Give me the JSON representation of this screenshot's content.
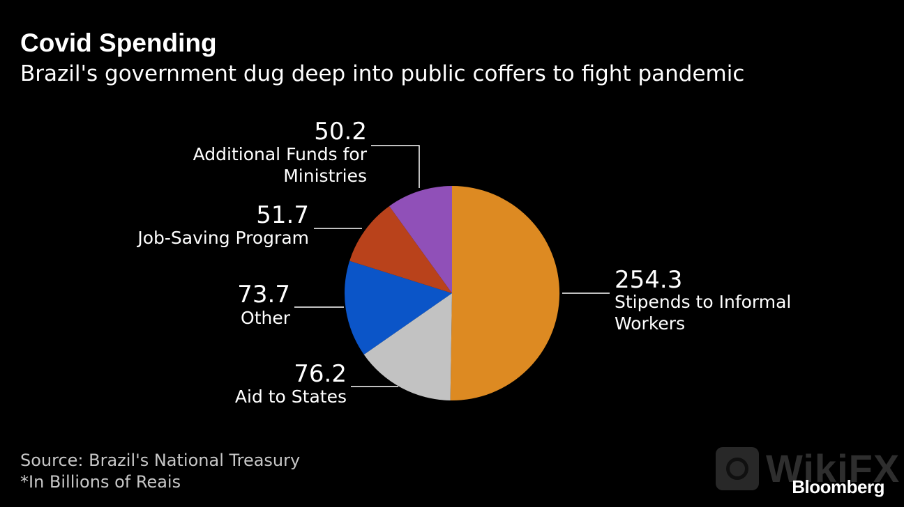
{
  "header": {
    "title": "Covid Spending",
    "subtitle": "Brazil's government dug deep into public coffers to fight pandemic"
  },
  "footer": {
    "source": "Source: Brazil's National Treasury",
    "note": "*In Billions of Reais",
    "brand": "Bloomberg"
  },
  "watermark": {
    "text": "WikiFX",
    "icon": "wikifx-logo-icon"
  },
  "chart_data": {
    "type": "pie",
    "unit": "Billions of Reais",
    "slices": [
      {
        "label": "Stipends to Informal Workers",
        "value": 254.3,
        "display": "254.3",
        "color": "#dd8a22"
      },
      {
        "label": "Aid to States",
        "value": 76.2,
        "display": "76.2",
        "color": "#c2c2c2"
      },
      {
        "label": "Other",
        "value": 73.7,
        "display": "73.7",
        "color": "#0b55c8"
      },
      {
        "label": "Job-Saving Program",
        "value": 51.7,
        "display": "51.7",
        "color": "#b9421b"
      },
      {
        "label": "Additional Funds for Ministries",
        "value": 50.2,
        "display": "50.2",
        "color": "#9050b8"
      }
    ]
  }
}
